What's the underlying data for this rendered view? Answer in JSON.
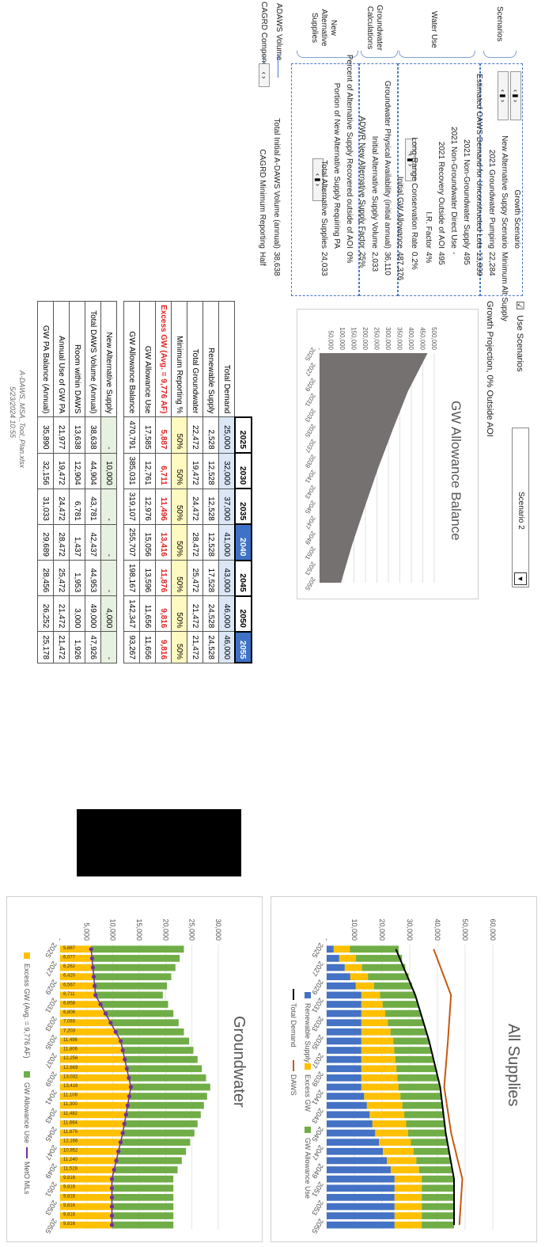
{
  "scenario_controls": {
    "use_scenarios_label": "Use Scenarios",
    "use_scenarios_checked": "☑",
    "scenario_select": "Scenario 2",
    "growth_projection": "Growth Projection, 0% Outside AOI"
  },
  "groups": {
    "scenarios": "Scenarios",
    "water_use": "Water Use",
    "gw_calc": "Groundwater Calculations",
    "new_alt": "New Alternative Supplies",
    "adaws": "ADAWS Volume",
    "cagrd": "CAGRD Component"
  },
  "params": [
    {
      "label": "Growth Scenario",
      "value": ""
    },
    {
      "label": "New Alternative Suppy Scenario",
      "value": "Minimum Alt Supply"
    },
    {
      "label": "2021 Groundwater Pumping",
      "value": "22,284"
    },
    {
      "label": "Estimated CAWS Demand for Unconstructed Lots",
      "value": "13,839"
    },
    {
      "label": "2021 Non-Groundwater Supply",
      "value": "495"
    },
    {
      "label": "2021 Non-Groundwater Direct Use",
      "value": "-"
    },
    {
      "label": "2021 Recovery Outside of AOI",
      "value": "495"
    },
    {
      "label": "I.R. Factor",
      "value": "4%"
    },
    {
      "label": "Long-Range Conservation Rate",
      "value": "0.2%"
    },
    {
      "label": "Initial GW Allowance",
      "value": "487,376"
    },
    {
      "label": "Groundwater Physical Availability (initial annual)",
      "value": "36,110"
    },
    {
      "label": "Initial Alternative Supply Volume",
      "value": "2,033"
    },
    {
      "label": "ADWR New Alternative Supply Factor",
      "value": "25%"
    },
    {
      "label": "Percent of Alternative Supply Recovered outside of AOI",
      "value": "0%"
    },
    {
      "label": "Portion of New Alternative Supply Requiring PA",
      "value": ""
    },
    {
      "label": "Total Alternative Supplies",
      "value": "24,033"
    },
    {
      "label": "Total Initial A-DAWS Volume (annual)",
      "value": "38,638"
    },
    {
      "label": "CAGRD Minimum Reporting",
      "value": "Half"
    }
  ],
  "table": {
    "years": [
      "2025",
      "2030",
      "2035",
      "2040",
      "2045",
      "2050",
      "2055"
    ],
    "rows": [
      {
        "label": "Total Demand",
        "values": [
          "25,000",
          "32,000",
          "37,000",
          "41,000",
          "43,000",
          "46,000",
          "46,000"
        ]
      },
      {
        "label": "Renewable Supply",
        "values": [
          "2,528",
          "12,528",
          "12,528",
          "12,528",
          "17,528",
          "24,528",
          "24,528"
        ]
      },
      {
        "label": "Total Groundwater",
        "values": [
          "22,472",
          "19,472",
          "24,472",
          "28,472",
          "25,472",
          "21,472",
          "21,472"
        ]
      },
      {
        "label": "Minimum Reporting %",
        "values": [
          "50%",
          "50%",
          "50%",
          "50%",
          "50%",
          "50%",
          "50%"
        ]
      },
      {
        "label": "Excess GW (Avg. = 9,776 AF)",
        "values": [
          "5,887",
          "6,711",
          "11,496",
          "13,416",
          "11,876",
          "9,816",
          "9,816"
        ]
      },
      {
        "label": "GW Allowance Use",
        "values": [
          "17,585",
          "12,761",
          "12,976",
          "15,056",
          "13,596",
          "11,656",
          "11,656"
        ]
      },
      {
        "label": "GW Allowance Balance",
        "values": [
          "470,791",
          "385,031",
          "319,107",
          "255,707",
          "198,167",
          "142,347",
          "93,267"
        ]
      },
      {
        "label": "New Alternative Supply",
        "values": [
          "-",
          "10,000",
          "-",
          "-",
          "-",
          "4,000",
          "-"
        ]
      },
      {
        "label": "Total DAWS Volume (Annual)",
        "values": [
          "38,638",
          "44,904",
          "43,781",
          "42,437",
          "44,953",
          "49,000",
          "47,926"
        ]
      },
      {
        "label": "Room within DAWS",
        "values": [
          "13,638",
          "12,904",
          "6,781",
          "1,437",
          "1,953",
          "3,000",
          "1,926"
        ]
      },
      {
        "label": "Annual Use of GW PA",
        "values": [
          "21,977",
          "19,472",
          "24,472",
          "28,472",
          "25,472",
          "21,472",
          "21,472"
        ]
      },
      {
        "label": "GW PA Balance (Annual)",
        "values": [
          "35,890",
          "32,156",
          "31,033",
          "29,689",
          "28,456",
          "26,252",
          "25,178"
        ]
      }
    ]
  },
  "footer": {
    "file": "A-DAWS_MSA_Tool_Plan.xlsx",
    "date": "5/23/2024 10:55"
  },
  "charts": {
    "balance": {
      "title": "GW Allowance Balance",
      "yticks": [
        "500,000",
        "450,000",
        "400,000",
        "350,000",
        "300,000",
        "250,000",
        "200,000",
        "150,000",
        "100,000",
        "50,000",
        "-"
      ],
      "xticks": [
        "2025",
        "2027",
        "2029",
        "2031",
        "2033",
        "2035",
        "2037",
        "2039",
        "2041",
        "2043",
        "2045",
        "2047",
        "2049",
        "2051",
        "2053",
        "2055"
      ],
      "fill_color": "#767171"
    },
    "all": {
      "title": "All Supplies",
      "yticks": [
        "60,000",
        "50,000",
        "40,000",
        "30,000",
        "20,000",
        "10,000",
        "-"
      ],
      "xticks": [
        "2025",
        "2027",
        "2029",
        "2031",
        "2033",
        "2035",
        "2037",
        "2039",
        "2041",
        "2043",
        "2045",
        "2047",
        "2049",
        "2051",
        "2053",
        "2055"
      ],
      "legend": [
        "Renewable Supply",
        "Excess GW",
        "GW Allowance Use",
        "Total Demand",
        "DAWS"
      ],
      "colors": {
        "renewable": "#4472c4",
        "excess": "#ffc000",
        "allowance": "#70ad47",
        "demand": "#000000",
        "daws": "#c55a11"
      }
    },
    "gw": {
      "title": "Groundwater",
      "yticks": [
        "30,000",
        "25,000",
        "20,000",
        "15,000",
        "10,000",
        "5,000",
        "-"
      ],
      "xticks": [
        "2025",
        "2027",
        "2029",
        "2031",
        "2033",
        "2035",
        "2037",
        "2039",
        "2041",
        "2043",
        "2045",
        "2047",
        "2049",
        "2051",
        "2053",
        "2055"
      ],
      "legend": [
        "Excess GW (Avg. = 9,776 AF)",
        "GW Allowance Use",
        "MetO MLs"
      ],
      "excess_labels": [
        "5,887",
        "6,077",
        "6,262",
        "6,420",
        "6,567",
        "6,711",
        "6,858",
        "6,808",
        "7,093",
        "7,203",
        "11,496",
        "11,806",
        "12,256",
        "12,669",
        "13,032",
        "13,416",
        "11,108",
        "11,300",
        "11,482",
        "11,664",
        "11,876",
        "12,166",
        "10,952",
        "11,240",
        "11,528",
        "9,816",
        "9,816",
        "9,816",
        "9,816",
        "9,816",
        "9,816"
      ],
      "colors": {
        "excess": "#ffc000",
        "allowance": "#70ad47",
        "marker": "#7030a0"
      }
    }
  },
  "chart_data": [
    {
      "type": "area",
      "title": "GW Allowance Balance",
      "x": [
        2025,
        2030,
        2035,
        2040,
        2045,
        2050,
        2055
      ],
      "series": [
        {
          "values": [
            470791,
            385031,
            319107,
            255707,
            198167,
            142347,
            93267
          ]
        }
      ],
      "ylim": [
        0,
        500000
      ]
    },
    {
      "type": "bar",
      "title": "All Supplies",
      "x": [
        2025,
        2030,
        2035,
        2040,
        2045,
        2050,
        2055
      ],
      "series": [
        {
          "name": "Renewable Supply",
          "values": [
            2528,
            12528,
            12528,
            12528,
            17528,
            24528,
            24528
          ]
        },
        {
          "name": "Excess GW",
          "values": [
            5887,
            6711,
            11496,
            13416,
            11876,
            9816,
            9816
          ]
        },
        {
          "name": "GW Allowance Use",
          "values": [
            17585,
            12761,
            12976,
            15056,
            13596,
            11656,
            11656
          ]
        },
        {
          "name": "Total Demand",
          "values": [
            25000,
            32000,
            37000,
            41000,
            43000,
            46000,
            46000
          ]
        },
        {
          "name": "DAWS",
          "values": [
            38638,
            44904,
            43781,
            42437,
            44953,
            49000,
            47926
          ]
        }
      ],
      "ylim": [
        0,
        60000
      ]
    },
    {
      "type": "bar",
      "title": "Groundwater",
      "x": [
        2025,
        2030,
        2035,
        2040,
        2045,
        2050,
        2055
      ],
      "series": [
        {
          "name": "Excess GW (Avg. = 9,776 AF)",
          "values": [
            5887,
            6711,
            11496,
            13416,
            11876,
            9816,
            9816
          ]
        },
        {
          "name": "GW Allowance Use",
          "values": [
            17585,
            12761,
            12976,
            15056,
            13596,
            11656,
            11656
          ]
        },
        {
          "name": "MetO MLs",
          "values": [
            5887,
            6711,
            11496,
            13416,
            11876,
            9816,
            9816
          ]
        }
      ],
      "ylim": [
        0,
        30000
      ]
    }
  ]
}
